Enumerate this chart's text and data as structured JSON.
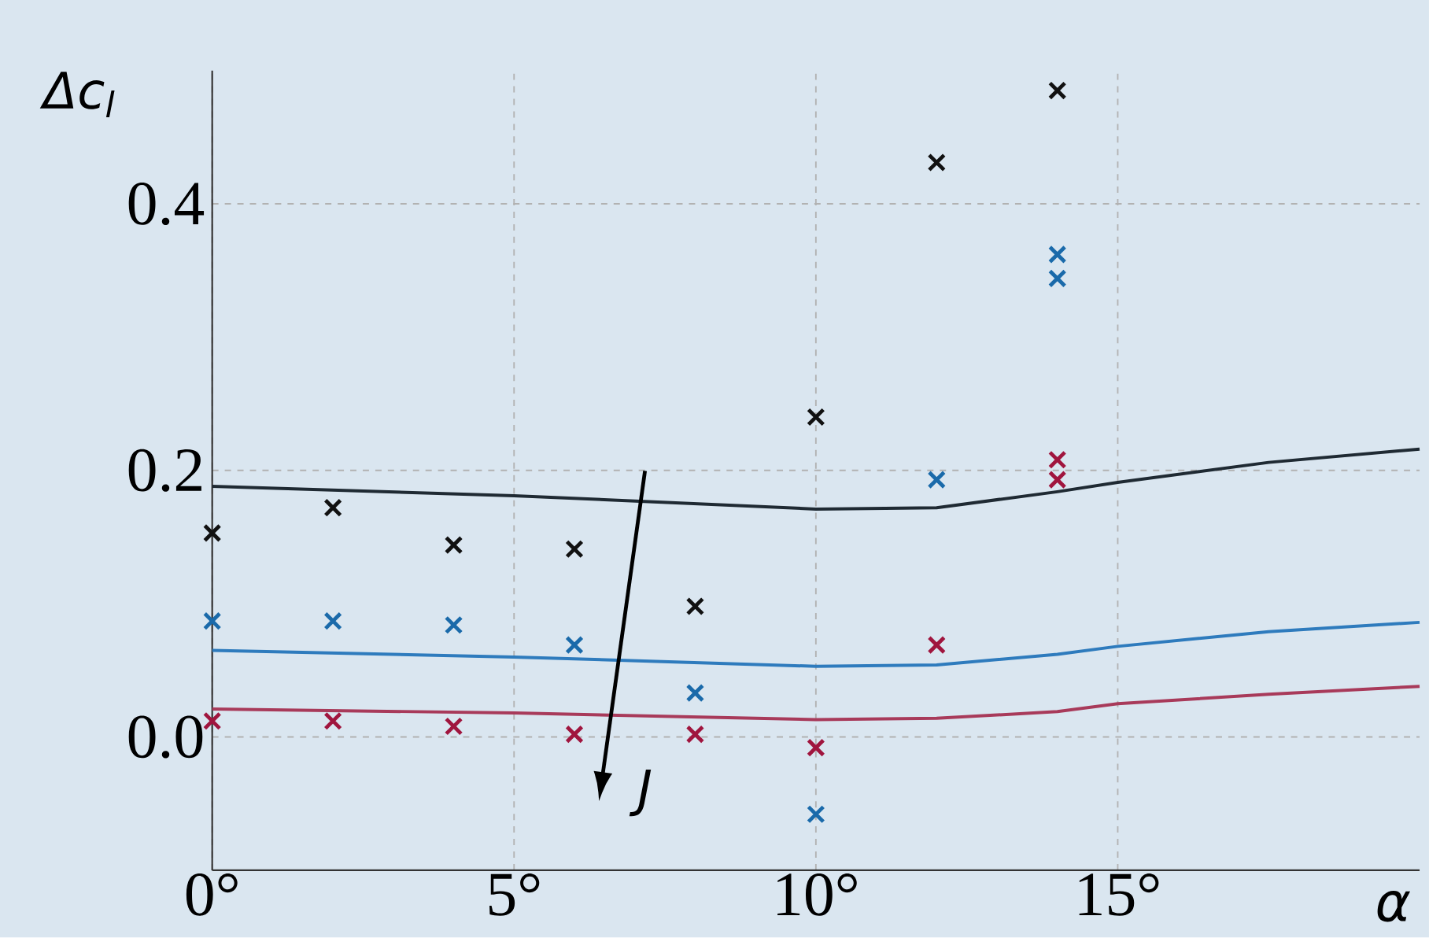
{
  "chart_data": {
    "type": "scatter",
    "xlabel": "α",
    "ylabel": "Δc$_{l}$",
    "xlim": [
      0,
      20
    ],
    "ylim": [
      -0.1,
      0.5
    ],
    "xticks": [
      {
        "value": 0,
        "label": "0°"
      },
      {
        "value": 5,
        "label": "5°"
      },
      {
        "value": 10,
        "label": "10°"
      },
      {
        "value": 15,
        "label": "15°"
      }
    ],
    "yticks": [
      {
        "value": 0,
        "label": "0.0"
      },
      {
        "value": 0.2,
        "label": "0.2"
      },
      {
        "value": 0.4,
        "label": "0.4"
      }
    ],
    "grid": true,
    "annotations": [
      "J"
    ],
    "series": [
      {
        "type": "line",
        "color": "#1f2a33",
        "x": [
          0,
          5,
          10,
          12,
          14,
          15,
          17.5,
          20
        ],
        "values": [
          0.188,
          0.181,
          0.171,
          0.172,
          0.184,
          0.191,
          0.206,
          0.216
        ]
      },
      {
        "type": "line",
        "color": "#2e7bbd",
        "x": [
          0,
          5,
          10,
          12,
          14,
          15,
          17.5,
          20
        ],
        "values": [
          0.065,
          0.06,
          0.053,
          0.054,
          0.062,
          0.068,
          0.079,
          0.086
        ]
      },
      {
        "type": "line",
        "color": "#a83a5a",
        "x": [
          0,
          5,
          10,
          12,
          14,
          15,
          17.5,
          20
        ],
        "values": [
          0.021,
          0.018,
          0.013,
          0.014,
          0.019,
          0.025,
          0.032,
          0.038
        ]
      },
      {
        "marker": "cross",
        "color": "#111111",
        "x": [
          0,
          2,
          4,
          6,
          8,
          10,
          12,
          14
        ],
        "values": [
          0.153,
          0.172,
          0.144,
          0.141,
          0.098,
          0.24,
          0.431,
          0.485
        ]
      },
      {
        "marker": "cross",
        "color": "#1a6aaa",
        "x": [
          0,
          2,
          4,
          6,
          8,
          10,
          12,
          14,
          14
        ],
        "values": [
          0.087,
          0.087,
          0.084,
          0.069,
          0.033,
          -0.058,
          0.193,
          0.362,
          0.344
        ]
      },
      {
        "marker": "cross",
        "color": "#a0153e",
        "x": [
          0,
          2,
          4,
          6,
          8,
          10,
          12,
          14,
          14
        ],
        "values": [
          0.012,
          0.012,
          0.008,
          0.002,
          0.002,
          -0.008,
          0.069,
          0.208,
          0.193
        ]
      }
    ]
  }
}
